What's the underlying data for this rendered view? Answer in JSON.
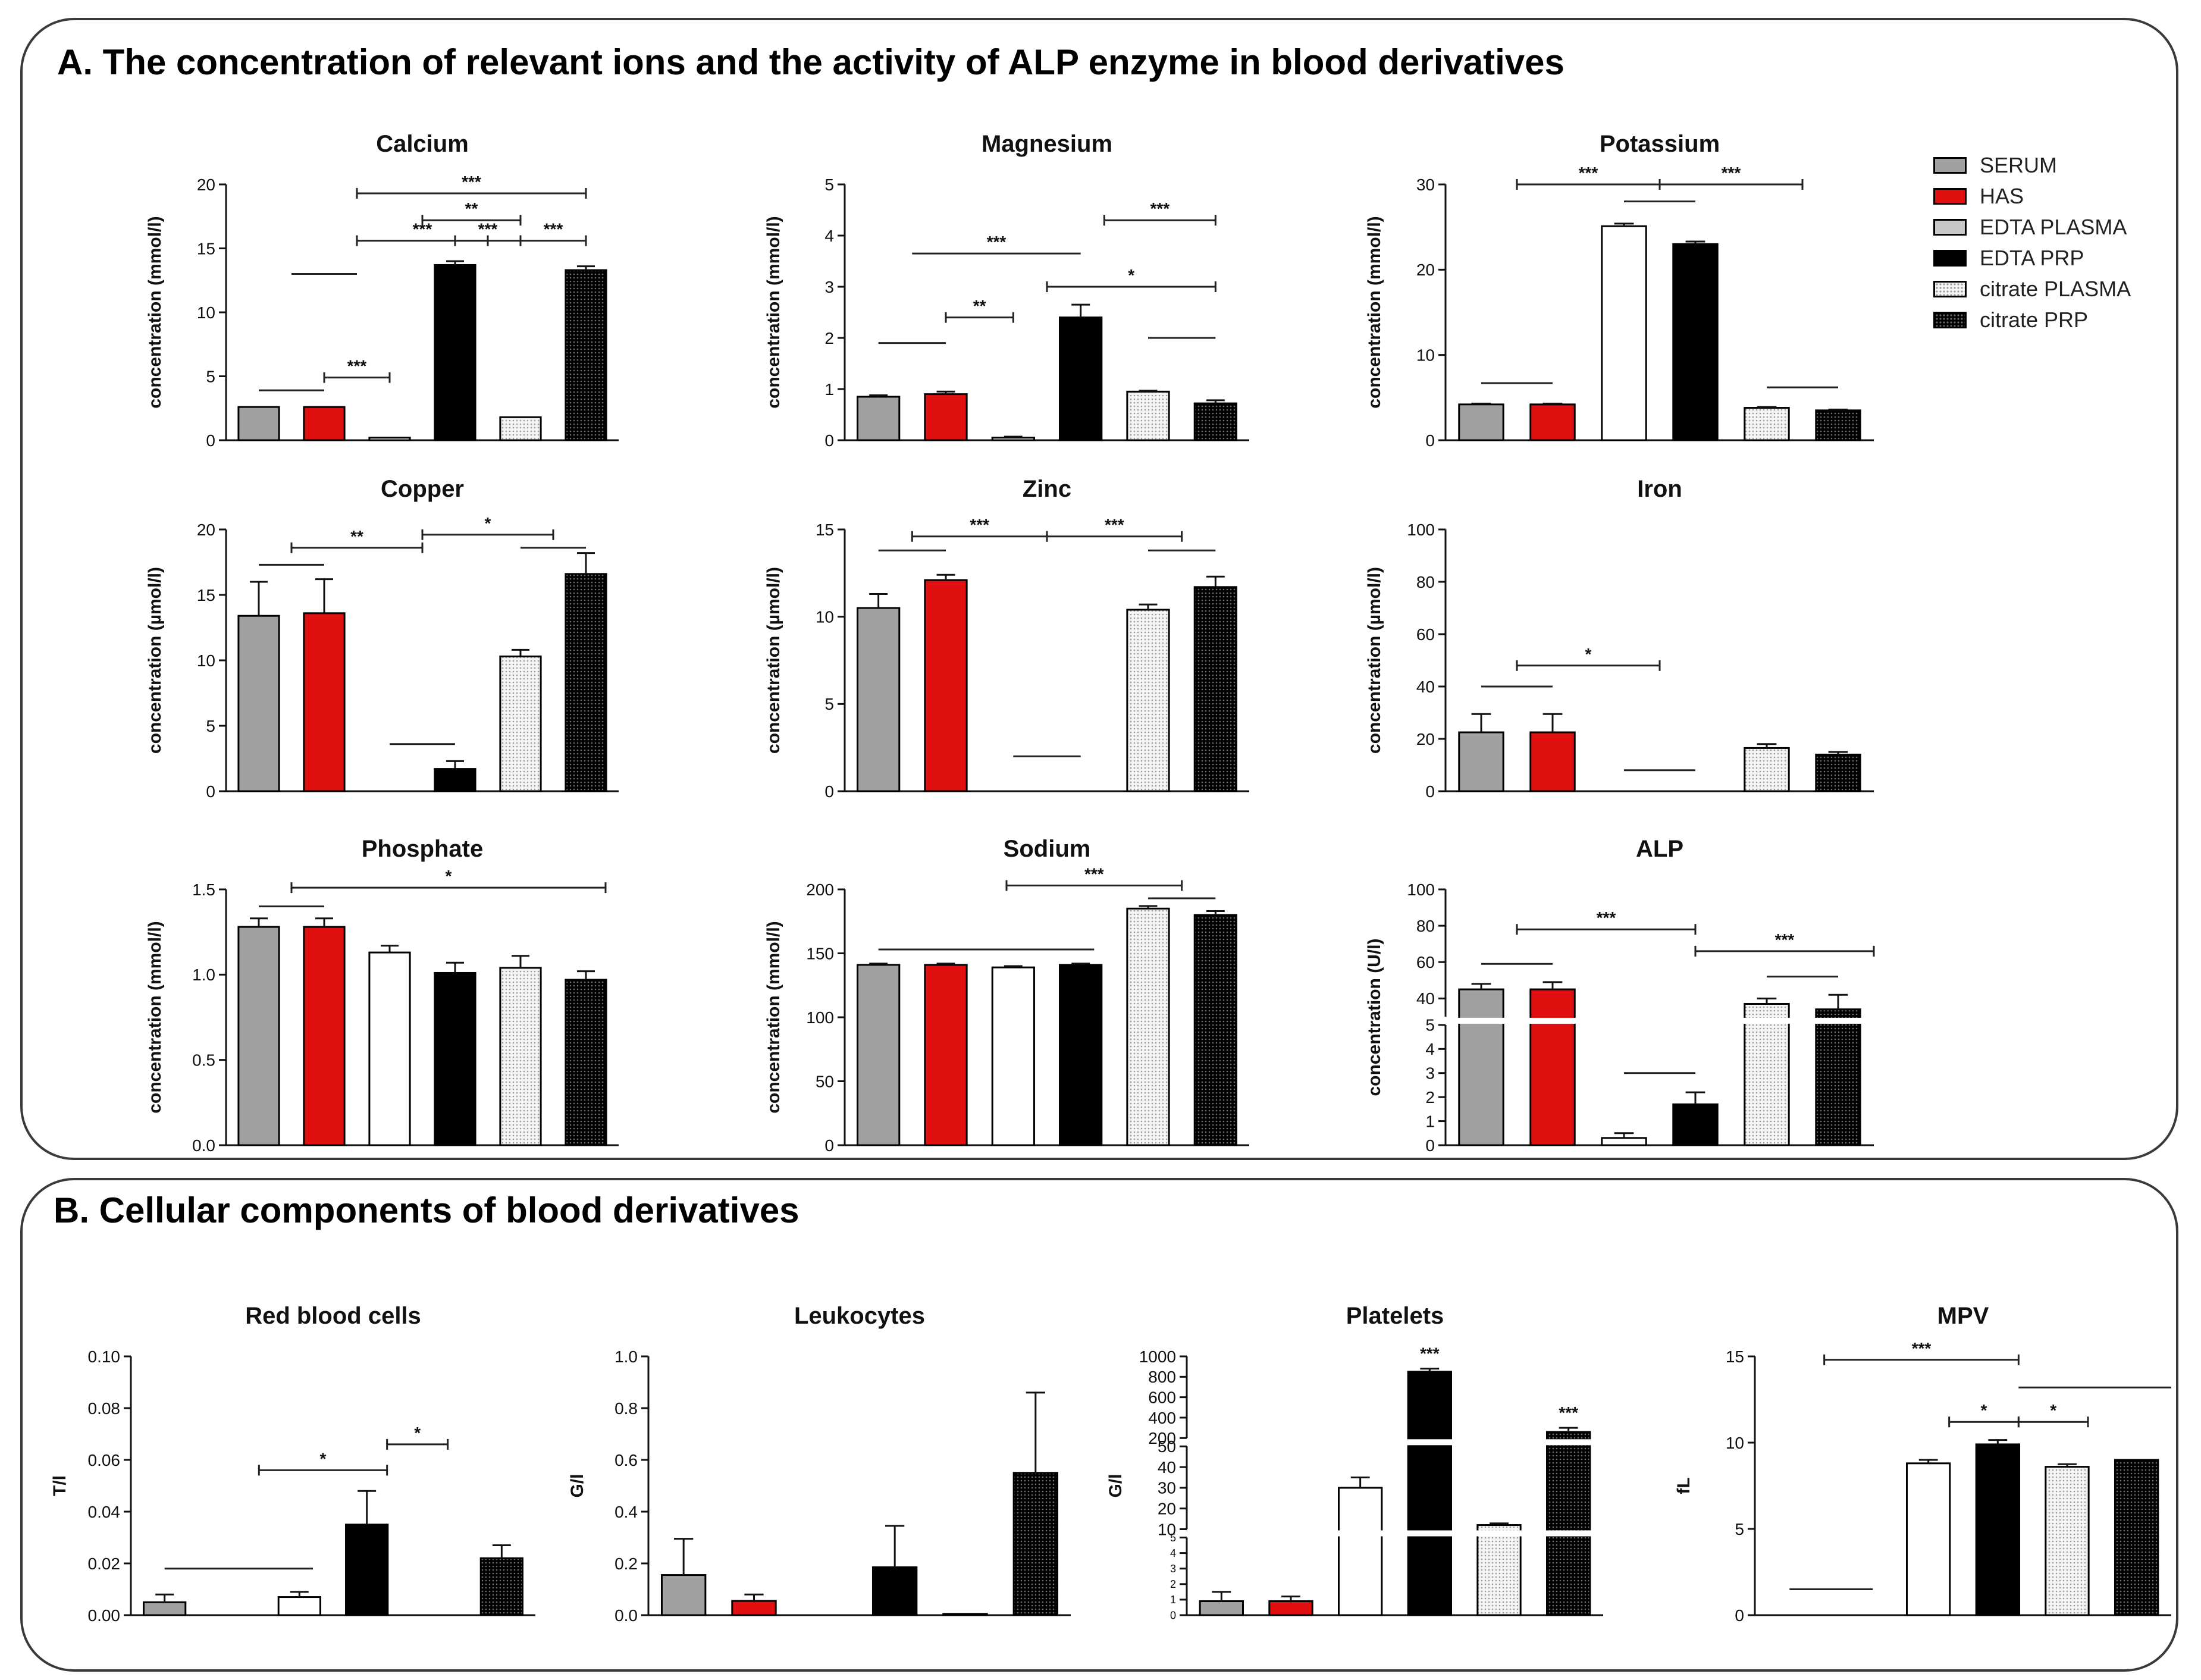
{
  "panels": {
    "a_title": "A. The concentration of relevant ions and the activity of ALP enzyme in blood derivatives",
    "b_title": "B. Cellular components of blood derivatives"
  },
  "legend": [
    {
      "label": "SERUM",
      "color": "#a0a0a0",
      "pattern": "solid"
    },
    {
      "label": "HAS",
      "color": "#e01010",
      "pattern": "solid"
    },
    {
      "label": "EDTA PLASMA",
      "color": "#c8c8c8",
      "pattern": "solid"
    },
    {
      "label": "EDTA PRP",
      "color": "#000000",
      "pattern": "solid"
    },
    {
      "label": "citrate PLASMA",
      "color": "#f2f2f2",
      "pattern": "dots-light"
    },
    {
      "label": "citrate PRP",
      "color": "#000000",
      "pattern": "dots-dark"
    }
  ],
  "chart_data": [
    {
      "id": "calcium",
      "type": "bar",
      "title": "Calcium",
      "ylabel": "concentration (mmol/l)",
      "ylim": [
        0,
        20
      ],
      "ticks": [
        "0",
        "5",
        "10",
        "15",
        "20"
      ],
      "tick_values": [
        0,
        5,
        10,
        15,
        20
      ],
      "categories": [
        "SERUM",
        "HAS",
        "EDTA PLASMA",
        "EDTA PRP",
        "citrate PLASMA",
        "citrate PRP"
      ],
      "values": [
        2.6,
        2.6,
        0.2,
        13.7,
        1.8,
        13.3
      ],
      "errors": [
        0,
        0,
        0,
        0.3,
        0,
        0.3
      ],
      "bar_styles": [
        "serum",
        "has",
        "white",
        "black",
        "dots-light",
        "dots-dark"
      ],
      "brackets": [
        {
          "from": 0.5,
          "to": 1.5,
          "y": 13,
          "label": "",
          "ticks": false
        },
        {
          "from": 0,
          "to": 1,
          "y": 3.9,
          "label": "",
          "ticks": false
        },
        {
          "from": 1,
          "to": 2,
          "y": 4.9,
          "label": "***",
          "ticks": true
        },
        {
          "from": 1.5,
          "to": 3.5,
          "y": 15.6,
          "label": "***",
          "ticks": true
        },
        {
          "from": 2.5,
          "to": 4,
          "y": 17.2,
          "label": "**",
          "ticks": true
        },
        {
          "from": 1.5,
          "to": 5,
          "y": 19.3,
          "label": "***",
          "ticks": true
        },
        {
          "from": 3,
          "to": 4,
          "y": 15.6,
          "label": "***",
          "ticks": true
        },
        {
          "from": 4,
          "to": 5,
          "y": 15.6,
          "label": "***",
          "ticks": true
        }
      ]
    },
    {
      "id": "magnesium",
      "type": "bar",
      "title": "Magnesium",
      "ylabel": "concentration (mmol/l)",
      "ylim": [
        0,
        5
      ],
      "ticks": [
        "0",
        "1",
        "2",
        "3",
        "4",
        "5"
      ],
      "tick_values": [
        0,
        1,
        2,
        3,
        4,
        5
      ],
      "categories": [
        "SERUM",
        "HAS",
        "EDTA PLASMA",
        "EDTA PRP",
        "citrate PLASMA",
        "citrate PRP"
      ],
      "values": [
        0.85,
        0.9,
        0.05,
        2.4,
        0.95,
        0.72
      ],
      "errors": [
        0.03,
        0.05,
        0.02,
        0.25,
        0.02,
        0.06
      ],
      "bar_styles": [
        "serum",
        "has",
        "white",
        "black",
        "dots-light",
        "dots-dark"
      ],
      "brackets": [
        {
          "from": 0,
          "to": 1,
          "y": 1.9,
          "label": "",
          "ticks": false
        },
        {
          "from": 1,
          "to": 2,
          "y": 2.4,
          "label": "**",
          "ticks": true
        },
        {
          "from": 0.5,
          "to": 3,
          "y": 3.65,
          "label": "***",
          "ticks": false
        },
        {
          "from": 2.5,
          "to": 5,
          "y": 3.0,
          "label": "*",
          "ticks": true
        },
        {
          "from": 3.35,
          "to": 5,
          "y": 4.3,
          "label": "***",
          "ticks": true
        },
        {
          "from": 4,
          "to": 5,
          "y": 2.0,
          "label": "",
          "ticks": false
        }
      ]
    },
    {
      "id": "potassium",
      "type": "bar",
      "title": "Potassium",
      "ylabel": "concentration (mmol/l)",
      "ylim": [
        0,
        30
      ],
      "ticks": [
        "0",
        "10",
        "20",
        "30"
      ],
      "tick_values": [
        0,
        10,
        20,
        30
      ],
      "categories": [
        "SERUM",
        "HAS",
        "EDTA PLASMA",
        "EDTA PRP",
        "citrate PLASMA",
        "citrate PRP"
      ],
      "values": [
        4.2,
        4.2,
        25.1,
        23.0,
        3.8,
        3.5
      ],
      "errors": [
        0.1,
        0.1,
        0.3,
        0.3,
        0.1,
        0.1
      ],
      "bar_styles": [
        "serum",
        "has",
        "white",
        "black",
        "dots-light",
        "dots-dark"
      ],
      "brackets": [
        {
          "from": 0,
          "to": 1,
          "y": 6.7,
          "label": "",
          "ticks": false
        },
        {
          "from": 2,
          "to": 3,
          "y": 28,
          "label": "",
          "ticks": false
        },
        {
          "from": 0.5,
          "to": 2.5,
          "y": 30,
          "label": "***",
          "ticks": true
        },
        {
          "from": 2.5,
          "to": 4.5,
          "y": 30,
          "label": "***",
          "ticks": true
        },
        {
          "from": 4,
          "to": 5,
          "y": 6.2,
          "label": "",
          "ticks": false
        }
      ]
    },
    {
      "id": "copper",
      "type": "bar",
      "title": "Copper",
      "ylabel": "concentration (µmol/l)",
      "ylim": [
        0,
        20
      ],
      "ticks": [
        "0",
        "5",
        "10",
        "15",
        "20"
      ],
      "tick_values": [
        0,
        5,
        10,
        15,
        20
      ],
      "categories": [
        "SERUM",
        "HAS",
        "EDTA PLASMA",
        "EDTA PRP",
        "citrate PLASMA",
        "citrate PRP"
      ],
      "values": [
        13.4,
        13.6,
        0,
        1.7,
        10.3,
        16.6
      ],
      "errors": [
        2.6,
        2.6,
        0,
        0.6,
        0.5,
        1.6
      ],
      "bar_styles": [
        "serum",
        "has",
        "white",
        "black",
        "dots-light",
        "dots-dark"
      ],
      "brackets": [
        {
          "from": 0,
          "to": 1,
          "y": 17.3,
          "label": "",
          "ticks": false
        },
        {
          "from": 0.5,
          "to": 2.5,
          "y": 18.6,
          "label": "**",
          "ticks": true
        },
        {
          "from": 2.5,
          "to": 4.5,
          "y": 19.6,
          "label": "*",
          "ticks": true
        },
        {
          "from": 2,
          "to": 3,
          "y": 3.6,
          "label": "",
          "ticks": false
        },
        {
          "from": 4,
          "to": 5,
          "y": 18.6,
          "label": "",
          "ticks": false
        }
      ]
    },
    {
      "id": "zinc",
      "type": "bar",
      "title": "Zinc",
      "ylabel": "concentration (µmol/l)",
      "ylim": [
        0,
        15
      ],
      "ticks": [
        "0",
        "5",
        "10",
        "15"
      ],
      "tick_values": [
        0,
        5,
        10,
        15
      ],
      "categories": [
        "SERUM",
        "HAS",
        "EDTA PLASMA",
        "EDTA PRP",
        "citrate PLASMA",
        "citrate PRP"
      ],
      "values": [
        10.5,
        12.1,
        0,
        0,
        10.4,
        11.7
      ],
      "errors": [
        0.8,
        0.3,
        0,
        0,
        0.3,
        0.6
      ],
      "bar_styles": [
        "serum",
        "has",
        "white",
        "black",
        "dots-light",
        "dots-dark"
      ],
      "brackets": [
        {
          "from": 0,
          "to": 1,
          "y": 13.8,
          "label": "",
          "ticks": false
        },
        {
          "from": 0.5,
          "to": 2.5,
          "y": 14.6,
          "label": "***",
          "ticks": true
        },
        {
          "from": 2.5,
          "to": 4.5,
          "y": 14.6,
          "label": "***",
          "ticks": true
        },
        {
          "from": 2,
          "to": 3,
          "y": 2.0,
          "label": "",
          "ticks": false
        },
        {
          "from": 4,
          "to": 5,
          "y": 13.8,
          "label": "",
          "ticks": false
        }
      ]
    },
    {
      "id": "iron",
      "type": "bar",
      "title": "Iron",
      "ylabel": "concentration (µmol/l)",
      "ylim": [
        0,
        100
      ],
      "ticks": [
        "0",
        "20",
        "40",
        "60",
        "80",
        "100"
      ],
      "tick_values": [
        0,
        20,
        40,
        60,
        80,
        100
      ],
      "categories": [
        "SERUM",
        "HAS",
        "EDTA PLASMA",
        "EDTA PRP",
        "citrate PLASMA",
        "citrate PRP"
      ],
      "values": [
        22.5,
        22.5,
        0,
        0,
        16.5,
        14.0
      ],
      "errors": [
        7,
        7,
        0,
        0,
        1.5,
        1.0
      ],
      "bar_styles": [
        "serum",
        "has",
        "white",
        "black",
        "dots-light",
        "dots-dark"
      ],
      "brackets": [
        {
          "from": 0,
          "to": 1,
          "y": 40,
          "label": "",
          "ticks": false
        },
        {
          "from": 0.5,
          "to": 2.5,
          "y": 48,
          "label": "*",
          "ticks": true
        },
        {
          "from": 2,
          "to": 3,
          "y": 8,
          "label": "",
          "ticks": false
        }
      ]
    },
    {
      "id": "phosphate",
      "type": "bar",
      "title": "Phosphate",
      "ylabel": "concentration (mmol/l)",
      "ylim": [
        0,
        1.5
      ],
      "ticks": [
        "0.0",
        "0.5",
        "1.0",
        "1.5"
      ],
      "tick_values": [
        0,
        0.5,
        1.0,
        1.5
      ],
      "categories": [
        "SERUM",
        "HAS",
        "EDTA PLASMA",
        "EDTA PRP",
        "citrate PLASMA",
        "citrate PRP"
      ],
      "values": [
        1.28,
        1.28,
        1.13,
        1.01,
        1.04,
        0.97
      ],
      "errors": [
        0.05,
        0.05,
        0.04,
        0.06,
        0.07,
        0.05
      ],
      "bar_styles": [
        "serum",
        "has",
        "white",
        "black",
        "dots-light",
        "dots-dark"
      ],
      "brackets": [
        {
          "from": 0,
          "to": 1,
          "y": 1.4,
          "label": "",
          "ticks": false
        },
        {
          "from": 0.5,
          "to": 5.3,
          "y": 1.51,
          "label": "*",
          "ticks": true
        }
      ]
    },
    {
      "id": "sodium",
      "type": "bar",
      "title": "Sodium",
      "ylabel": "concentration (mmol/l)",
      "ylim": [
        0,
        200
      ],
      "ticks": [
        "0",
        "50",
        "100",
        "150",
        "200"
      ],
      "tick_values": [
        0,
        50,
        100,
        150,
        200
      ],
      "categories": [
        "SERUM",
        "HAS",
        "EDTA PLASMA",
        "EDTA PRP",
        "citrate PLASMA",
        "citrate PRP"
      ],
      "values": [
        141,
        141,
        139,
        141,
        185,
        180
      ],
      "errors": [
        1,
        1,
        1,
        1,
        2,
        3
      ],
      "bar_styles": [
        "serum",
        "has",
        "white",
        "black",
        "dots-light",
        "dots-dark"
      ],
      "brackets": [
        {
          "from": 0,
          "to": 3.2,
          "y": 153,
          "label": "",
          "ticks": false
        },
        {
          "from": 1.9,
          "to": 4.5,
          "y": 203,
          "label": "***",
          "ticks": true
        },
        {
          "from": 4,
          "to": 5,
          "y": 193,
          "label": "",
          "ticks": false
        }
      ]
    },
    {
      "id": "alp",
      "type": "bar",
      "title": "ALP",
      "ylabel": "concentration (U/l)",
      "ylim": [
        0,
        100
      ],
      "scale": "broken",
      "break_low": 5,
      "break_high": 30,
      "ticks": [
        "0",
        "1",
        "2",
        "3",
        "4",
        "5",
        "40",
        "60",
        "80",
        "100"
      ],
      "tick_values": [
        0,
        1,
        2,
        3,
        4,
        5,
        40,
        60,
        80,
        100
      ],
      "categories": [
        "SERUM",
        "HAS",
        "EDTA PLASMA",
        "EDTA PRP",
        "citrate PLASMA",
        "citrate PRP"
      ],
      "values": [
        45,
        45,
        0.3,
        1.7,
        37,
        34
      ],
      "errors": [
        3,
        4,
        0.2,
        0.5,
        3,
        8
      ],
      "bar_styles": [
        "serum",
        "has",
        "white",
        "black",
        "dots-light",
        "dots-dark"
      ],
      "brackets": [
        {
          "from": 0,
          "to": 1,
          "y": 59,
          "label": "",
          "ticks": false
        },
        {
          "from": 0.5,
          "to": 3,
          "y": 78,
          "label": "***",
          "ticks": true
        },
        {
          "from": 3,
          "to": 5.5,
          "y": 66,
          "label": "***",
          "ticks": true
        },
        {
          "from": 2,
          "to": 3,
          "y": 3.0,
          "label": "",
          "ticks": false
        },
        {
          "from": 4,
          "to": 5,
          "y": 52,
          "label": "",
          "ticks": false
        }
      ]
    },
    {
      "id": "rbc",
      "type": "bar",
      "title": "Red blood cells",
      "ylabel": "T/l",
      "ylim": [
        0,
        0.1
      ],
      "ticks": [
        "0.00",
        "0.02",
        "0.04",
        "0.06",
        "0.08",
        "0.10"
      ],
      "tick_values": [
        0,
        0.02,
        0.04,
        0.06,
        0.08,
        0.1
      ],
      "categories": [
        "SERUM",
        "HAS",
        "EDTA PLASMA",
        "EDTA PRP",
        "citrate PLASMA",
        "citrate PRP"
      ],
      "values": [
        0.005,
        0,
        0.007,
        0.035,
        0,
        0.022
      ],
      "errors": [
        0.003,
        0,
        0.002,
        0.013,
        0,
        0.005
      ],
      "bar_styles": [
        "serum",
        "has",
        "white",
        "black",
        "dots-light",
        "dots-dark"
      ],
      "brackets": [
        {
          "from": 0,
          "to": 2.2,
          "y": 0.018,
          "label": "",
          "ticks": false
        },
        {
          "from": 1.4,
          "to": 3.3,
          "y": 0.056,
          "label": "*",
          "ticks": true
        },
        {
          "from": 3.3,
          "to": 4.2,
          "y": 0.066,
          "label": "*",
          "ticks": true
        }
      ]
    },
    {
      "id": "leukocytes",
      "type": "bar",
      "title": "Leukocytes",
      "ylabel": "G/l",
      "ylim": [
        0,
        1.0
      ],
      "ticks": [
        "0.0",
        "0.2",
        "0.4",
        "0.6",
        "0.8",
        "1.0"
      ],
      "tick_values": [
        0,
        0.2,
        0.4,
        0.6,
        0.8,
        1.0
      ],
      "categories": [
        "SERUM",
        "HAS",
        "EDTA PLASMA",
        "EDTA PRP",
        "citrate PLASMA",
        "citrate PRP"
      ],
      "values": [
        0.155,
        0.055,
        0,
        0.185,
        0.005,
        0.55
      ],
      "errors": [
        0.14,
        0.025,
        0,
        0.16,
        0,
        0.31
      ],
      "bar_styles": [
        "serum",
        "has",
        "white",
        "black",
        "dots-light",
        "dots-dark"
      ],
      "brackets": []
    },
    {
      "id": "platelets",
      "type": "bar",
      "title": "Platelets",
      "ylabel": "G/l",
      "ylim": [
        0,
        1000
      ],
      "scale": "platelets",
      "ticks": [
        "0",
        "1",
        "2",
        "3",
        "4",
        "5",
        "10",
        "20",
        "30",
        "40",
        "50",
        "200",
        "400",
        "600",
        "800",
        "1000"
      ],
      "tick_values": [
        0,
        1,
        2,
        3,
        4,
        5,
        10,
        20,
        30,
        40,
        50,
        200,
        400,
        600,
        800,
        1000
      ],
      "categories": [
        "SERUM",
        "HAS",
        "EDTA PLASMA",
        "EDTA PRP",
        "citrate PLASMA",
        "citrate PRP"
      ],
      "values": [
        0.9,
        0.9,
        30,
        850,
        12,
        260
      ],
      "errors": [
        0.6,
        0.3,
        5,
        30,
        0.8,
        40
      ],
      "bar_styles": [
        "serum",
        "has",
        "white",
        "black",
        "dots-light",
        "dots-dark"
      ],
      "annotations": [
        {
          "bar": 3,
          "label": "***"
        },
        {
          "bar": 5,
          "label": "***"
        }
      ],
      "brackets": []
    },
    {
      "id": "mpv",
      "type": "bar",
      "title": "MPV",
      "ylabel": "fL",
      "ylim": [
        0,
        15
      ],
      "ticks": [
        "0",
        "5",
        "10",
        "15"
      ],
      "tick_values": [
        0,
        5,
        10,
        15
      ],
      "categories": [
        "SERUM",
        "HAS",
        "EDTA PLASMA",
        "EDTA PRP",
        "citrate PLASMA",
        "citrate PRP"
      ],
      "values": [
        0,
        0,
        8.8,
        9.9,
        8.6,
        9.0
      ],
      "errors": [
        0,
        0,
        0.2,
        0.25,
        0.15,
        0
      ],
      "bar_styles": [
        "serum",
        "has",
        "white",
        "black",
        "dots-light",
        "dots-dark"
      ],
      "brackets": [
        {
          "from": 0,
          "to": 1.2,
          "y": 1.5,
          "label": "",
          "ticks": false
        },
        {
          "from": 0.5,
          "to": 3.3,
          "y": 14.8,
          "label": "***",
          "ticks": true
        },
        {
          "from": 3.3,
          "to": 5.5,
          "y": 13.2,
          "label": "",
          "ticks": false
        },
        {
          "from": 2.3,
          "to": 3.3,
          "y": 11.2,
          "label": "*",
          "ticks": true
        },
        {
          "from": 3.3,
          "to": 4.3,
          "y": 11.2,
          "label": "*",
          "ticks": true
        }
      ]
    }
  ]
}
